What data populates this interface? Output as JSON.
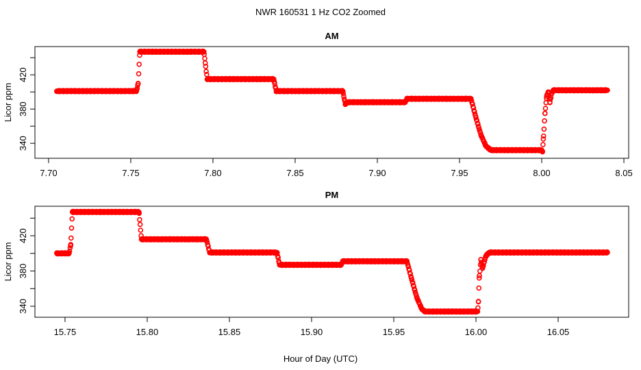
{
  "chart_data": {
    "type": "scatter",
    "title": "NWR  160531  1 Hz CO2 Zoomed",
    "xlabel": "Hour of Day (UTC)",
    "color": "#ff0000",
    "panels": [
      {
        "title": "AM",
        "ylabel": "Licor ppm",
        "xlim": [
          7.6917,
          8.0529
        ],
        "ylim": [
          322.5,
          453
        ],
        "xticks": [
          "7.70",
          "7.75",
          "7.80",
          "7.85",
          "7.90",
          "7.95",
          "8.00",
          "8.05"
        ],
        "yticks": [
          "340",
          "380",
          "420"
        ],
        "yticks_minor": [
          360,
          400,
          440
        ],
        "breakpoints": [
          [
            7.705,
            401
          ],
          [
            7.7535,
            401
          ],
          [
            7.7545,
            410
          ],
          [
            7.7555,
            447
          ],
          [
            7.7945,
            447
          ],
          [
            7.7965,
            415
          ],
          [
            7.837,
            415
          ],
          [
            7.8385,
            401
          ],
          [
            7.879,
            401
          ],
          [
            7.8805,
            386
          ],
          [
            7.882,
            388
          ],
          [
            7.917,
            388
          ],
          [
            7.918,
            392
          ],
          [
            7.957,
            392
          ],
          [
            7.96,
            370
          ],
          [
            7.963,
            350
          ],
          [
            7.966,
            337
          ],
          [
            7.969,
            332
          ],
          [
            8.0,
            332
          ],
          [
            8.0005,
            330
          ],
          [
            8.001,
            345
          ],
          [
            8.002,
            375
          ],
          [
            8.003,
            395
          ],
          [
            8.004,
            400
          ],
          [
            8.005,
            388
          ],
          [
            8.006,
            398
          ],
          [
            8.007,
            402
          ],
          [
            8.04,
            402
          ]
        ]
      },
      {
        "title": "PM",
        "ylabel": "Licor ppm",
        "xlim": [
          15.7317,
          16.0929
        ],
        "ylim": [
          327.5,
          453.5
        ],
        "xticks": [
          "15.75",
          "15.80",
          "15.85",
          "15.90",
          "15.95",
          "16.00",
          "16.05"
        ],
        "yticks": [
          "340",
          "380",
          "420"
        ],
        "yticks_minor": [
          360,
          400,
          440
        ],
        "breakpoints": [
          [
            15.745,
            400
          ],
          [
            15.7525,
            400
          ],
          [
            15.7535,
            410
          ],
          [
            15.7545,
            447
          ],
          [
            15.795,
            447
          ],
          [
            15.7965,
            416
          ],
          [
            15.836,
            416
          ],
          [
            15.838,
            401
          ],
          [
            15.879,
            401
          ],
          [
            15.8805,
            387
          ],
          [
            15.918,
            387
          ],
          [
            15.919,
            391
          ],
          [
            15.958,
            391
          ],
          [
            15.961,
            370
          ],
          [
            15.964,
            350
          ],
          [
            15.967,
            337
          ],
          [
            15.969,
            334
          ],
          [
            16.001,
            334
          ],
          [
            16.0015,
            345
          ],
          [
            16.002,
            372
          ],
          [
            16.003,
            393
          ],
          [
            16.004,
            383
          ],
          [
            16.006,
            397
          ],
          [
            16.008,
            401
          ],
          [
            16.08,
            401
          ]
        ]
      }
    ]
  }
}
